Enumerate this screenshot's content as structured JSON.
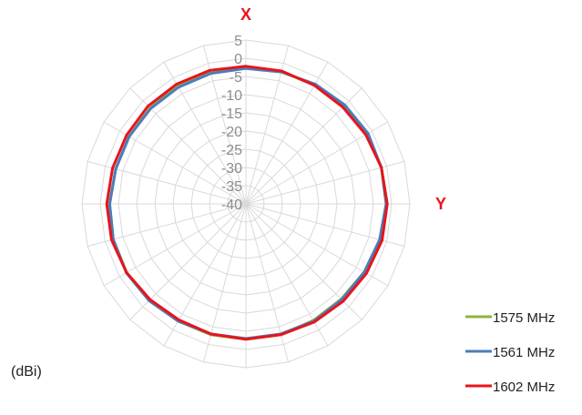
{
  "chart_data": {
    "type": "radar",
    "unit_label": "(dBi)",
    "axis_labels": {
      "top": "X",
      "right": "Y"
    },
    "radial_ticks": [
      "5",
      "0",
      "-5",
      "-10",
      "-15",
      "-20",
      "-25",
      "-30",
      "-35",
      "-40"
    ],
    "rlim": [
      -40,
      5
    ],
    "angular_divisions": 24,
    "grid": true,
    "legend_position": "bottom-right",
    "angles_deg": [
      0,
      15,
      30,
      45,
      60,
      75,
      90,
      105,
      120,
      135,
      150,
      165,
      180,
      195,
      210,
      225,
      240,
      255,
      270,
      285,
      300,
      315,
      330,
      345
    ],
    "series": [
      {
        "name": "1575 MHz",
        "color": "#8cb43c",
        "values": [
          -2.5,
          -2.4,
          -2.3,
          -2.0,
          -1.6,
          -1.5,
          -1.5,
          -2.0,
          -2.5,
          -3.0,
          -3.0,
          -2.8,
          -2.8,
          -2.8,
          -2.8,
          -2.6,
          -2.2,
          -2.3,
          -2.6,
          -3.0,
          -3.0,
          -2.8,
          -2.6,
          -2.5
        ]
      },
      {
        "name": "1561 MHz",
        "color": "#4a7ebb",
        "values": [
          -2.8,
          -2.5,
          -2.0,
          -1.6,
          -1.3,
          -1.5,
          -1.5,
          -2.0,
          -2.5,
          -2.8,
          -2.8,
          -3.0,
          -3.0,
          -3.0,
          -2.8,
          -2.4,
          -2.1,
          -2.3,
          -2.6,
          -3.0,
          -3.0,
          -3.0,
          -3.0,
          -2.9
        ]
      },
      {
        "name": "1602 MHz",
        "color": "#e8141c",
        "values": [
          -2.2,
          -2.2,
          -2.4,
          -2.4,
          -2.0,
          -1.5,
          -1.2,
          -1.3,
          -1.8,
          -2.2,
          -2.5,
          -2.8,
          -2.8,
          -3.0,
          -3.2,
          -2.8,
          -2.2,
          -1.8,
          -1.8,
          -2.1,
          -2.2,
          -2.0,
          -2.0,
          -2.0
        ]
      }
    ]
  }
}
